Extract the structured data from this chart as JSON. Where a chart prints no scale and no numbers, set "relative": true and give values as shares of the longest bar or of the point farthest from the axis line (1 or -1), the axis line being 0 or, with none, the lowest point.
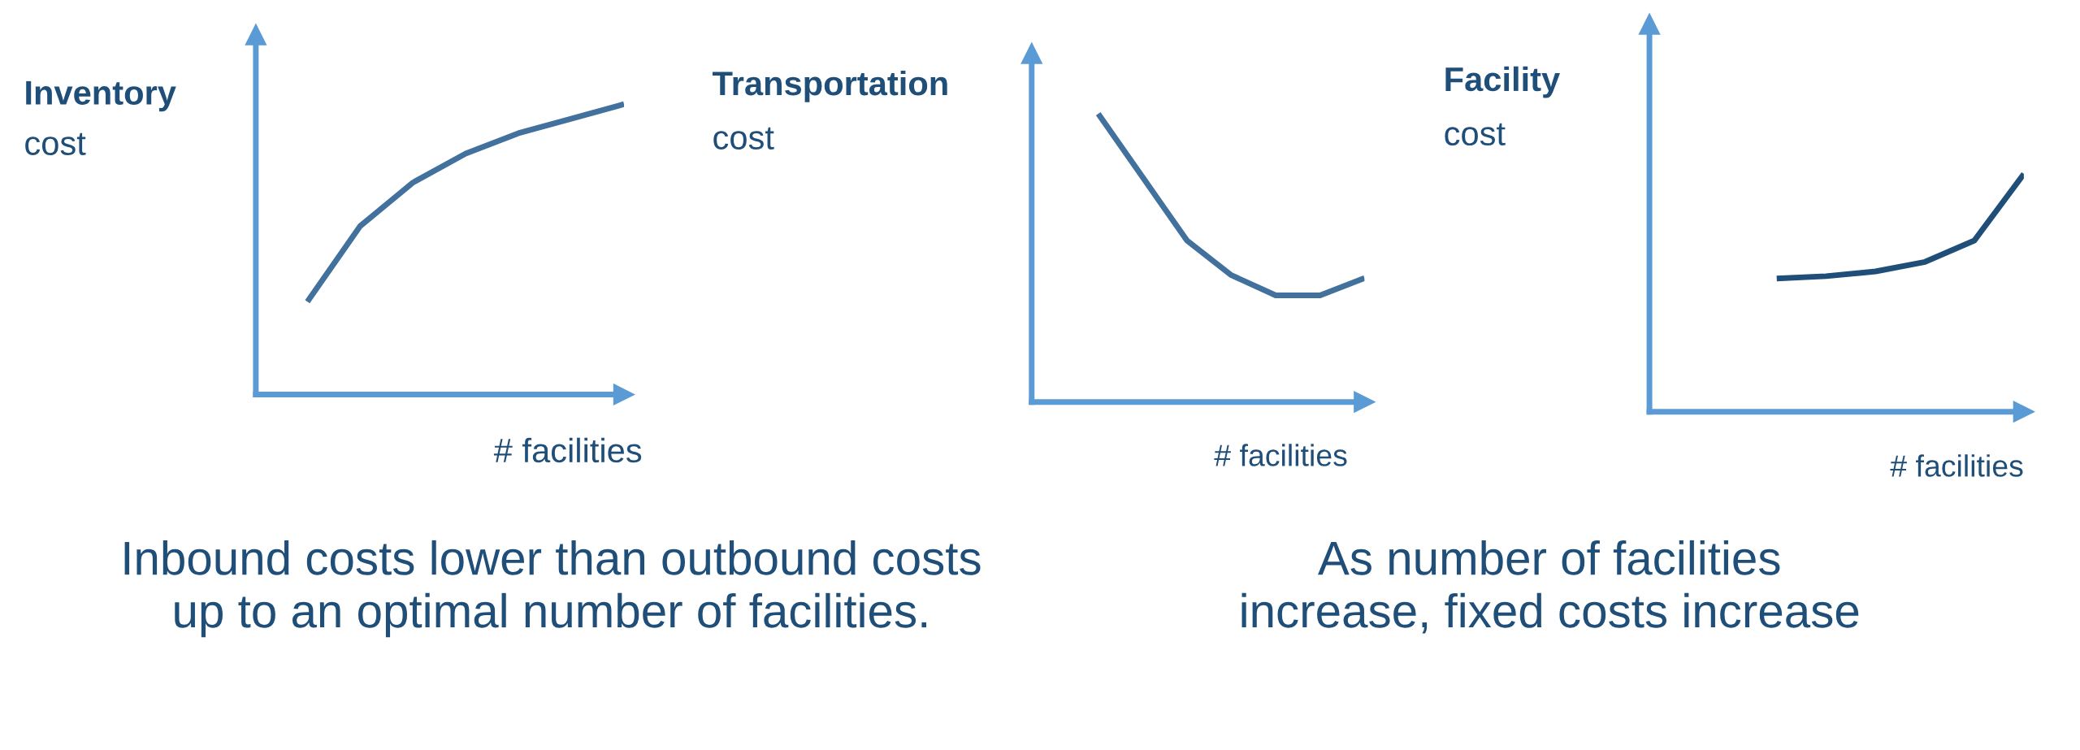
{
  "chart_data": [
    {
      "type": "line",
      "relative": true,
      "title": "Inventory",
      "ylabel": "cost",
      "xlabel": "# facilities",
      "categories": [
        null,
        null,
        null,
        null,
        null,
        null,
        null
      ],
      "series": [
        {
          "color": "#41719c",
          "values": [
            0.32,
            0.58,
            0.73,
            0.83,
            0.9,
            0.95,
            1.0
          ]
        }
      ],
      "annotations": [
        "Inbound costs lower than outbound costs\nup to an optimal number of facilities."
      ]
    },
    {
      "type": "line",
      "relative": true,
      "title": "Transportation",
      "ylabel": "cost",
      "xlabel": "# facilities",
      "categories": [
        null,
        null,
        null,
        null,
        null,
        null,
        null
      ],
      "series": [
        {
          "color": "#41719c",
          "values": [
            1.0,
            0.78,
            0.56,
            0.44,
            0.37,
            0.37,
            0.43
          ]
        }
      ]
    },
    {
      "type": "line",
      "relative": true,
      "title": "Facility",
      "ylabel": "cost",
      "xlabel": "# facilities",
      "categories": [
        null,
        null,
        null,
        null,
        null,
        null
      ],
      "series": [
        {
          "color": "#1f4e79",
          "values": [
            0.56,
            0.57,
            0.59,
            0.63,
            0.72,
            1.0
          ]
        }
      ],
      "annotations": [
        "As number of facilities\nincrease, fixed costs increase"
      ]
    }
  ]
}
